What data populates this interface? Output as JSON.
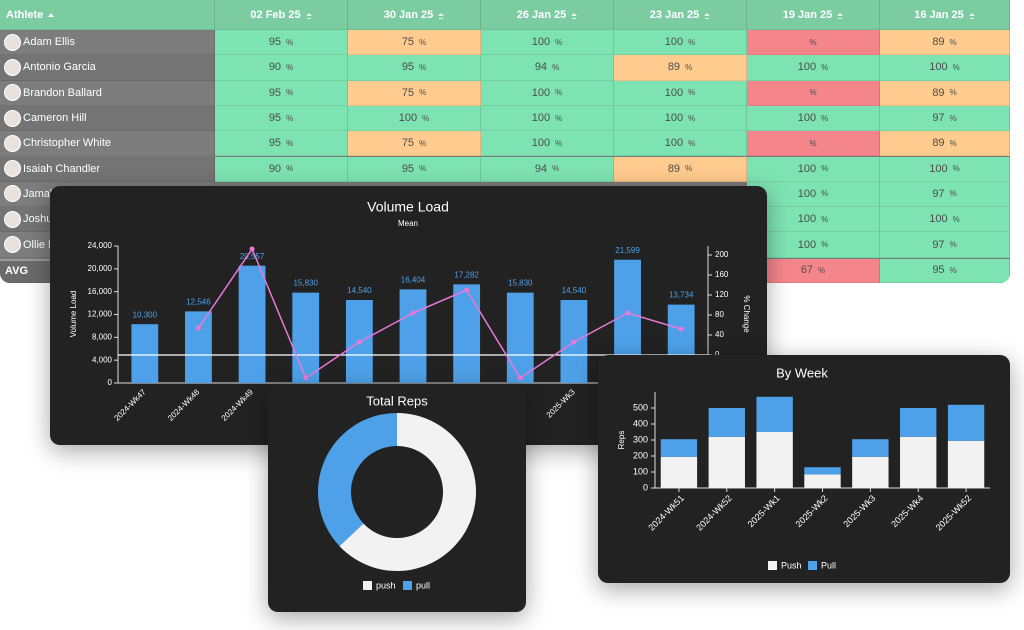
{
  "table": {
    "columns": [
      "Athlete",
      "02 Feb 25",
      "30 Jan 25",
      "26 Jan 25",
      "23 Jan 25",
      "19 Jan 25",
      "16 Jan 25"
    ],
    "unit": "%",
    "rows": [
      {
        "athlete": "Adam Ellis",
        "values": [
          95,
          75,
          100,
          100,
          null,
          89
        ],
        "colors": [
          "#7ee3b2",
          "#ffcb8e",
          "#7ee3b2",
          "#7ee3b2",
          "#f4868b",
          "#ffcb8e"
        ]
      },
      {
        "athlete": "Antonio Garcia",
        "values": [
          90,
          95,
          94,
          89,
          100,
          100
        ],
        "colors": [
          "#7ee3b2",
          "#7ee3b2",
          "#7ee3b2",
          "#ffcb8e",
          "#7ee3b2",
          "#7ee3b2"
        ]
      },
      {
        "athlete": "Brandon Ballard",
        "values": [
          95,
          75,
          100,
          100,
          null,
          89
        ],
        "colors": [
          "#7ee3b2",
          "#ffcb8e",
          "#7ee3b2",
          "#7ee3b2",
          "#f4868b",
          "#ffcb8e"
        ]
      },
      {
        "athlete": "Cameron Hill",
        "values": [
          95,
          100,
          100,
          100,
          100,
          97
        ],
        "colors": [
          "#7ee3b2",
          "#7ee3b2",
          "#7ee3b2",
          "#7ee3b2",
          "#7ee3b2",
          "#7ee3b2"
        ]
      },
      {
        "athlete": "Christopher White",
        "values": [
          95,
          75,
          100,
          100,
          null,
          89
        ],
        "colors": [
          "#7ee3b2",
          "#ffcb8e",
          "#7ee3b2",
          "#7ee3b2",
          "#f4868b",
          "#ffcb8e"
        ]
      },
      {
        "athlete": "Isaiah Chandler",
        "values": [
          90,
          95,
          94,
          89,
          100,
          100
        ],
        "colors": [
          "#7ee3b2",
          "#7ee3b2",
          "#7ee3b2",
          "#ffcb8e",
          "#7ee3b2",
          "#7ee3b2"
        ]
      },
      {
        "athlete": "Jamal",
        "values": [
          null,
          null,
          null,
          null,
          100,
          97
        ],
        "colors": [
          null,
          null,
          null,
          null,
          "#7ee3b2",
          "#7ee3b2"
        ]
      },
      {
        "athlete": "Joshu",
        "values": [
          null,
          null,
          null,
          null,
          100,
          100
        ],
        "colors": [
          null,
          null,
          null,
          null,
          "#7ee3b2",
          "#7ee3b2"
        ]
      },
      {
        "athlete": "Ollie M",
        "values": [
          null,
          null,
          null,
          null,
          100,
          97
        ],
        "colors": [
          null,
          null,
          null,
          null,
          "#7ee3b2",
          "#7ee3b2"
        ]
      }
    ],
    "avg": {
      "label": "AVG",
      "values": [
        null,
        null,
        null,
        null,
        67,
        95
      ],
      "colors": [
        null,
        null,
        null,
        null,
        "#f4868b",
        "#7ee3b2"
      ]
    }
  },
  "chart_data": [
    {
      "type": "bar-line",
      "title": "Volume Load",
      "subtitle": "Mean",
      "ylabel": "Volume Load",
      "y2label": "% Change",
      "categories": [
        "2024-Wk47",
        "2024-Wk48",
        "2024-Wk49",
        null,
        null,
        null,
        null,
        null,
        "2025-Wk3",
        null,
        null
      ],
      "series": [
        {
          "color": "#4ea1e8",
          "values": [
            10300,
            12546,
            20557,
            15830,
            14540,
            16404,
            17282,
            15830,
            14540,
            21599,
            13734
          ],
          "value_labels": [
            "10,300",
            "12,546",
            "20,557",
            "15,830",
            "14,540",
            "16,404",
            "17,282",
            "15,830",
            "14,540",
            "21,599",
            "13,734"
          ]
        },
        {
          "color": "#e879d8",
          "axis": "y2",
          "values": [
            null,
            54,
            212,
            -46,
            26,
            84,
            130,
            -46,
            26,
            84,
            52
          ]
        }
      ],
      "ylim": [
        0,
        24000
      ],
      "yticks": [
        0,
        {
          "value": 4000,
          "label": "4,000"
        },
        {
          "value": 8000,
          "label": "8,000"
        },
        {
          "value": 12000,
          "label": "12,000"
        },
        {
          "value": 16000,
          "label": "16,000"
        },
        {
          "value": 20000,
          "label": "20,000"
        },
        {
          "value": 24000,
          "label": "24,000"
        }
      ],
      "y2lim": [
        -56,
        218
      ],
      "y2ticks": [
        0,
        40,
        80,
        120,
        160,
        200
      ]
    },
    {
      "type": "donut",
      "title": "Total Reps",
      "series": [
        {
          "name": "push",
          "color": "#f2f2f2",
          "values": [
            63
          ]
        },
        {
          "name": "pull",
          "color": "#4ea1e8",
          "values": [
            37
          ]
        }
      ]
    },
    {
      "type": "stacked-bar",
      "title": "By Week",
      "ylabel": "Reps",
      "categories": [
        "2024-Wk51",
        "2024-Wk52",
        "2025-Wk1",
        "2025-Wk2",
        "2025-Wk3",
        "2025-Wk4",
        "2025-Wk52"
      ],
      "series": [
        {
          "name": "Push",
          "color": "#f2f2f2",
          "values": [
            195,
            320,
            350,
            85,
            195,
            320,
            295
          ]
        },
        {
          "name": "Pull",
          "color": "#4ea1e8",
          "values": [
            110,
            180,
            220,
            45,
            110,
            180,
            225
          ]
        }
      ],
      "ylim": [
        0,
        600
      ],
      "yticks": [
        0,
        100,
        200,
        300,
        400,
        500
      ]
    }
  ]
}
